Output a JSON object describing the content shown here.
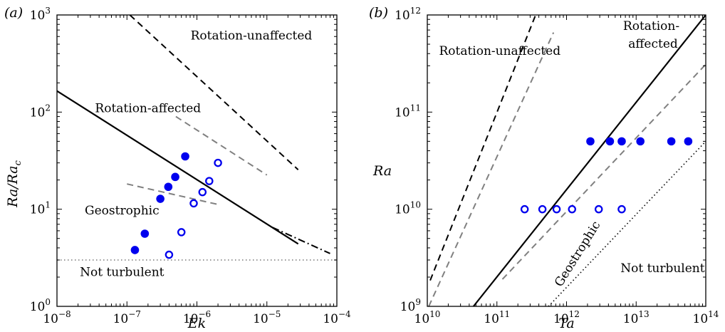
{
  "chart_data": [
    {
      "panel_label": "(a)",
      "type": "scatter",
      "xscale": "log",
      "yscale": "log",
      "xlabel": "Ek",
      "ylabel": "Ra/Rac",
      "xlim": [
        1e-08,
        0.0001
      ],
      "ylim": [
        1,
        1000
      ],
      "x_ticks": [
        1e-08,
        1e-07,
        1e-06,
        1e-05,
        0.0001
      ],
      "y_ticks": [
        1,
        10,
        100,
        1000
      ],
      "x_tick_labels": [
        {
          "base": "10",
          "exp": "−8"
        },
        {
          "base": "10",
          "exp": "−7"
        },
        {
          "base": "10",
          "exp": "−6"
        },
        {
          "base": "10",
          "exp": "−5"
        },
        {
          "base": "10",
          "exp": "−4"
        }
      ],
      "y_tick_labels": [
        {
          "base": "10",
          "exp": "0"
        },
        {
          "base": "10",
          "exp": "1"
        },
        {
          "base": "10",
          "exp": "2"
        },
        {
          "base": "10",
          "exp": "3"
        }
      ],
      "grid": false,
      "series": [
        {
          "marker": "filled-circle",
          "color": "#0000ee",
          "points": [
            [
              1.3e-07,
              3.8
            ],
            [
              1.8e-07,
              5.6
            ],
            [
              3e-07,
              12.8
            ],
            [
              3.9e-07,
              17.0
            ],
            [
              4.9e-07,
              21.5
            ],
            [
              6.8e-07,
              35.0
            ]
          ]
        },
        {
          "marker": "open-circle",
          "color": "#0000ee",
          "points": [
            [
              4e-07,
              3.4
            ],
            [
              6e-07,
              5.8
            ],
            [
              9e-07,
              11.5
            ],
            [
              1.2e-06,
              15.0
            ],
            [
              1.5e-06,
              19.5
            ],
            [
              2e-06,
              30.0
            ]
          ]
        }
      ],
      "lines": [
        {
          "style": "solid",
          "color": "#000000",
          "points": [
            [
              1e-08,
              165
            ],
            [
              2.8e-05,
              4.4
            ]
          ]
        },
        {
          "style": "dashdot",
          "color": "#000000",
          "points": [
            [
              1.2e-05,
              6.5
            ],
            [
              8e-05,
              3.5
            ]
          ]
        },
        {
          "style": "dashed",
          "color": "#000000",
          "points": [
            [
              1.1e-07,
              1000
            ],
            [
              2.8e-05,
              25.5
            ]
          ]
        },
        {
          "style": "dashed",
          "color": "#808080",
          "points": [
            [
              5e-07,
              90
            ],
            [
              1e-05,
              22.5
            ]
          ]
        },
        {
          "style": "dashed",
          "color": "#808080",
          "points": [
            [
              1e-07,
              18.2
            ],
            [
              2e-06,
              11.2
            ]
          ]
        },
        {
          "style": "dotted",
          "color": "#808080",
          "points": [
            [
              1e-08,
              3.0
            ],
            [
              0.0001,
              3.0
            ]
          ]
        }
      ],
      "annotations": [
        {
          "text": "Rotation-unaffected",
          "x": 6e-06,
          "y": 560,
          "anchor": "middle"
        },
        {
          "text": "Rotation-affected",
          "x": 2e-07,
          "y": 100,
          "anchor": "middle"
        },
        {
          "text": "Geostrophic",
          "x": 8.5e-08,
          "y": 8.8,
          "anchor": "middle"
        },
        {
          "text": "Not turbulent",
          "x": 8.5e-08,
          "y": 2.05,
          "anchor": "middle"
        }
      ]
    },
    {
      "panel_label": "(b)",
      "type": "scatter",
      "xscale": "log",
      "yscale": "log",
      "xlabel": "Ta",
      "ylabel": "Ra",
      "xlim": [
        10000000000.0,
        100000000000000.0
      ],
      "ylim": [
        1000000000.0,
        1000000000000.0
      ],
      "x_ticks": [
        10000000000.0,
        100000000000.0,
        1000000000000.0,
        10000000000000.0,
        100000000000000.0
      ],
      "y_ticks": [
        1000000000.0,
        10000000000.0,
        100000000000.0,
        1000000000000.0
      ],
      "x_tick_labels": [
        {
          "base": "10",
          "exp": "10"
        },
        {
          "base": "10",
          "exp": "11"
        },
        {
          "base": "10",
          "exp": "12"
        },
        {
          "base": "10",
          "exp": "13"
        },
        {
          "base": "10",
          "exp": "14"
        }
      ],
      "y_tick_labels": [
        {
          "base": "10",
          "exp": "9"
        },
        {
          "base": "10",
          "exp": "10"
        },
        {
          "base": "10",
          "exp": "11"
        },
        {
          "base": "10",
          "exp": "12"
        }
      ],
      "grid": false,
      "series": [
        {
          "marker": "filled-circle",
          "color": "#0000ee",
          "points": [
            [
              2200000000000.0,
              50000000000.0
            ],
            [
              4200000000000.0,
              50000000000.0
            ],
            [
              6200000000000.0,
              50000000000.0
            ],
            [
              11500000000000.0,
              50000000000.0
            ],
            [
              32000000000000.0,
              50000000000.0
            ],
            [
              56000000000000.0,
              50000000000.0
            ]
          ]
        },
        {
          "marker": "open-circle",
          "color": "#0000ee",
          "points": [
            [
              250000000000.0,
              10000000000.0
            ],
            [
              450000000000.0,
              10000000000.0
            ],
            [
              720000000000.0,
              10000000000.0
            ],
            [
              1200000000000.0,
              10000000000.0
            ],
            [
              2900000000000.0,
              10000000000.0
            ],
            [
              6200000000000.0,
              10000000000.0
            ]
          ]
        }
      ],
      "lines": [
        {
          "style": "dashed",
          "color": "#000000",
          "points": [
            [
              11000000000.0,
              1850000000.0
            ],
            [
              360000000000.0,
              1000000000000.0
            ]
          ]
        },
        {
          "style": "dashed",
          "color": "#808080",
          "points": [
            [
              10500000000.0,
              1000000000.0
            ],
            [
              650000000000.0,
              660000000000.0
            ]
          ]
        },
        {
          "style": "solid",
          "color": "#000000",
          "points": [
            [
              46000000000.0,
              1000000000.0
            ],
            [
              100000000000000.0,
              1000000000000.0
            ]
          ]
        },
        {
          "style": "dashed",
          "color": "#808080",
          "points": [
            [
              120000000000.0,
              1900000000.0
            ],
            [
              100000000000000.0,
              310000000000.0
            ]
          ]
        },
        {
          "style": "dotted",
          "color": "#000000",
          "points": [
            [
              550000000000.0,
              1000000000.0
            ],
            [
              100000000000000.0,
              50000000000.0
            ]
          ]
        }
      ],
      "annotations": [
        {
          "text": "Rotation-unaffected",
          "x": 110000000000.0,
          "y": 390000000000.0,
          "anchor": "middle"
        },
        {
          "text": "Rotation-",
          "x": 16500000000000.0,
          "y": 700000000000.0,
          "anchor": "middle"
        },
        {
          "text": "affected",
          "x": 17500000000000.0,
          "y": 460000000000.0,
          "anchor": "middle"
        },
        {
          "text": "Geostrophic",
          "x": 1600000000000.0,
          "y": 3300000000.0,
          "anchor": "middle",
          "rotate": -58
        },
        {
          "text": "Not turbulent",
          "x": 24000000000000.0,
          "y": 2250000000.0,
          "anchor": "middle"
        }
      ]
    }
  ]
}
